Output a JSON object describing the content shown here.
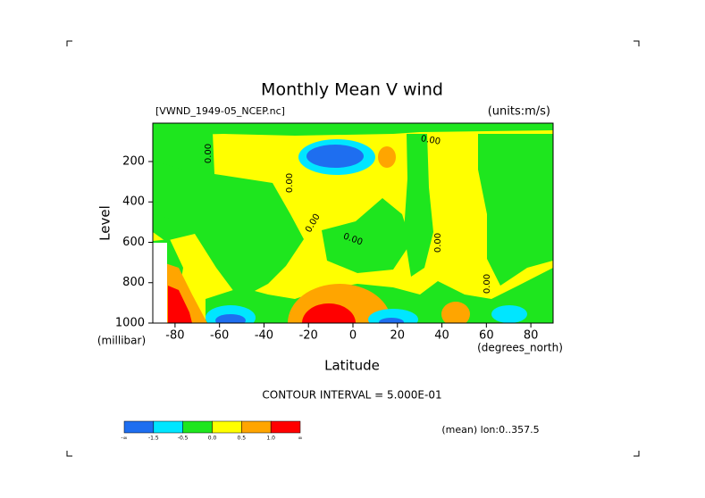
{
  "chart_data": {
    "type": "contour",
    "title": "Monthly Mean V wind",
    "subtitle_left": "[VWND_1949-05_NCEP.nc]",
    "subtitle_right": "(units:m/s)",
    "xlabel": "Latitude",
    "xunits": "(degrees_north)",
    "ylabel": "Level",
    "yunits": "(millibar)",
    "xlim": [
      -90,
      90
    ],
    "xticks": [
      -80,
      -60,
      -40,
      -20,
      0,
      20,
      40,
      60,
      80
    ],
    "ylim": [
      1000,
      10
    ],
    "yticks": [
      200,
      400,
      600,
      800,
      1000
    ],
    "annotation": "CONTOUR INTERVAL = 5.000E-01",
    "footnote": "(mean) lon:0..357.5",
    "contour_labels": [
      "0.00",
      "0.00",
      "0.00",
      "0.00",
      "0.00",
      "0.00",
      "0.00"
    ],
    "colorbar": {
      "colors": [
        "#1e6ef0",
        "#00e6ff",
        "#1ee61e",
        "#ffff00",
        "#ffa500",
        "#ff0000"
      ],
      "labels": [
        "-∞",
        "-1.5",
        "-0.5",
        "0.0",
        "0.5",
        "1.0",
        "∞"
      ]
    }
  }
}
